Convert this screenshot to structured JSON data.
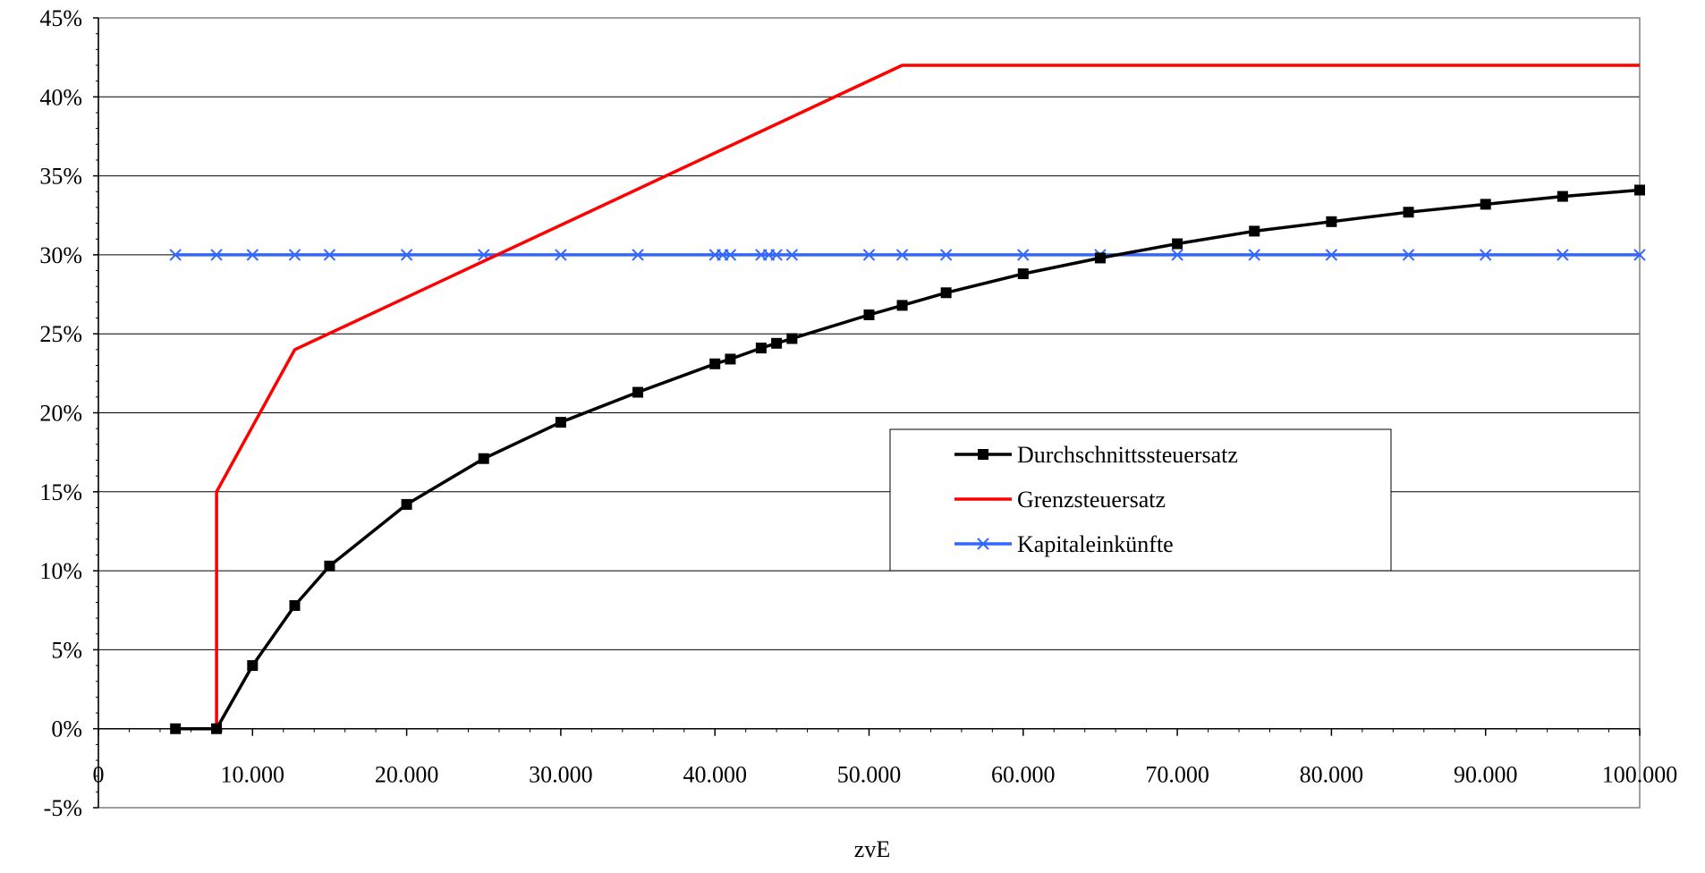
{
  "chart_data": {
    "type": "line",
    "xlabel": "zvE",
    "ylabel": "",
    "xlim": [
      0,
      100000
    ],
    "ylim": [
      -5,
      45
    ],
    "x_ticks": [
      "0",
      "10.000",
      "20.000",
      "30.000",
      "40.000",
      "50.000",
      "60.000",
      "70.000",
      "80.000",
      "90.000",
      "100.000"
    ],
    "y_ticks": [
      "-5%",
      "0%",
      "5%",
      "10%",
      "15%",
      "20%",
      "25%",
      "30%",
      "35%",
      "40%",
      "45%"
    ],
    "grid": true,
    "legend_position": "center-right",
    "series": [
      {
        "name": "Durchschnittssteuersatz",
        "color": "#000000",
        "marker": "square",
        "x": [
          5000,
          7664,
          10000,
          12739,
          15000,
          20000,
          25000,
          30000,
          35000,
          40000,
          41000,
          43000,
          44000,
          45000,
          50000,
          52152,
          55000,
          60000,
          65000,
          70000,
          75000,
          80000,
          85000,
          90000,
          95000,
          100000
        ],
        "y": [
          0,
          0,
          4.0,
          7.8,
          10.3,
          14.2,
          17.1,
          19.4,
          21.3,
          23.1,
          23.4,
          24.1,
          24.4,
          24.7,
          26.2,
          26.8,
          27.6,
          28.8,
          29.8,
          30.7,
          31.5,
          32.1,
          32.7,
          33.2,
          33.7,
          34.1
        ]
      },
      {
        "name": "Grenzsteuersatz",
        "color": "#ff0000",
        "marker": "none",
        "x": [
          5000,
          7664,
          7664,
          12739,
          52152,
          100000
        ],
        "y": [
          0,
          0,
          15,
          24,
          42,
          42
        ]
      },
      {
        "name": "Kapitaleinkünfte",
        "color": "#3366ff",
        "marker": "x",
        "x": [
          5000,
          7664,
          10000,
          12739,
          15000,
          20000,
          25000,
          30000,
          35000,
          40000,
          40500,
          41000,
          43000,
          43500,
          44000,
          45000,
          50000,
          52152,
          55000,
          60000,
          65000,
          70000,
          75000,
          80000,
          85000,
          90000,
          95000,
          100000
        ],
        "y": [
          30,
          30,
          30,
          30,
          30,
          30,
          30,
          30,
          30,
          30,
          30,
          30,
          30,
          30,
          30,
          30,
          30,
          30,
          30,
          30,
          30,
          30,
          30,
          30,
          30,
          30,
          30,
          30
        ]
      }
    ]
  }
}
